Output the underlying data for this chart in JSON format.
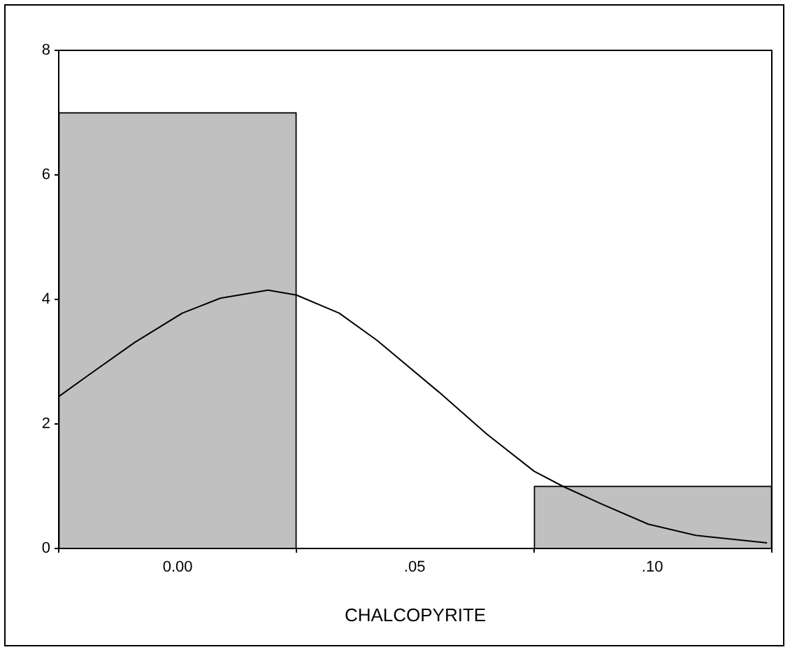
{
  "chart_data": {
    "type": "histogram",
    "xlabel": "CHALCOPYRITE",
    "bins": [
      -0.025,
      0.025,
      0.075,
      0.125
    ],
    "values": [
      7,
      0,
      1
    ],
    "color": "#c0c0c0",
    "series": [
      {
        "type": "line",
        "color": "#000000",
        "x": [
          -0.025,
          -0.019,
          -0.009,
          0.001,
          0.009,
          0.019,
          0.025,
          0.034,
          0.042,
          0.055,
          0.065,
          0.075,
          0.081,
          0.089,
          0.099,
          0.109,
          0.124
        ],
        "values": [
          2.44,
          2.77,
          3.31,
          3.78,
          4.02,
          4.15,
          4.07,
          3.78,
          3.34,
          2.51,
          1.84,
          1.24,
          1.0,
          0.72,
          0.39,
          0.21,
          0.09
        ]
      }
    ],
    "xlim": [
      -0.025,
      0.125
    ],
    "xticks": [
      {
        "value": 0,
        "label": "0.00"
      },
      {
        "value": 0.05,
        "label": ".05"
      },
      {
        "value": 0.1,
        "label": ".10"
      }
    ],
    "ylim": [
      0,
      8
    ],
    "yticks": [
      0,
      2,
      4,
      6,
      8
    ],
    "grid": false,
    "legend": false
  }
}
